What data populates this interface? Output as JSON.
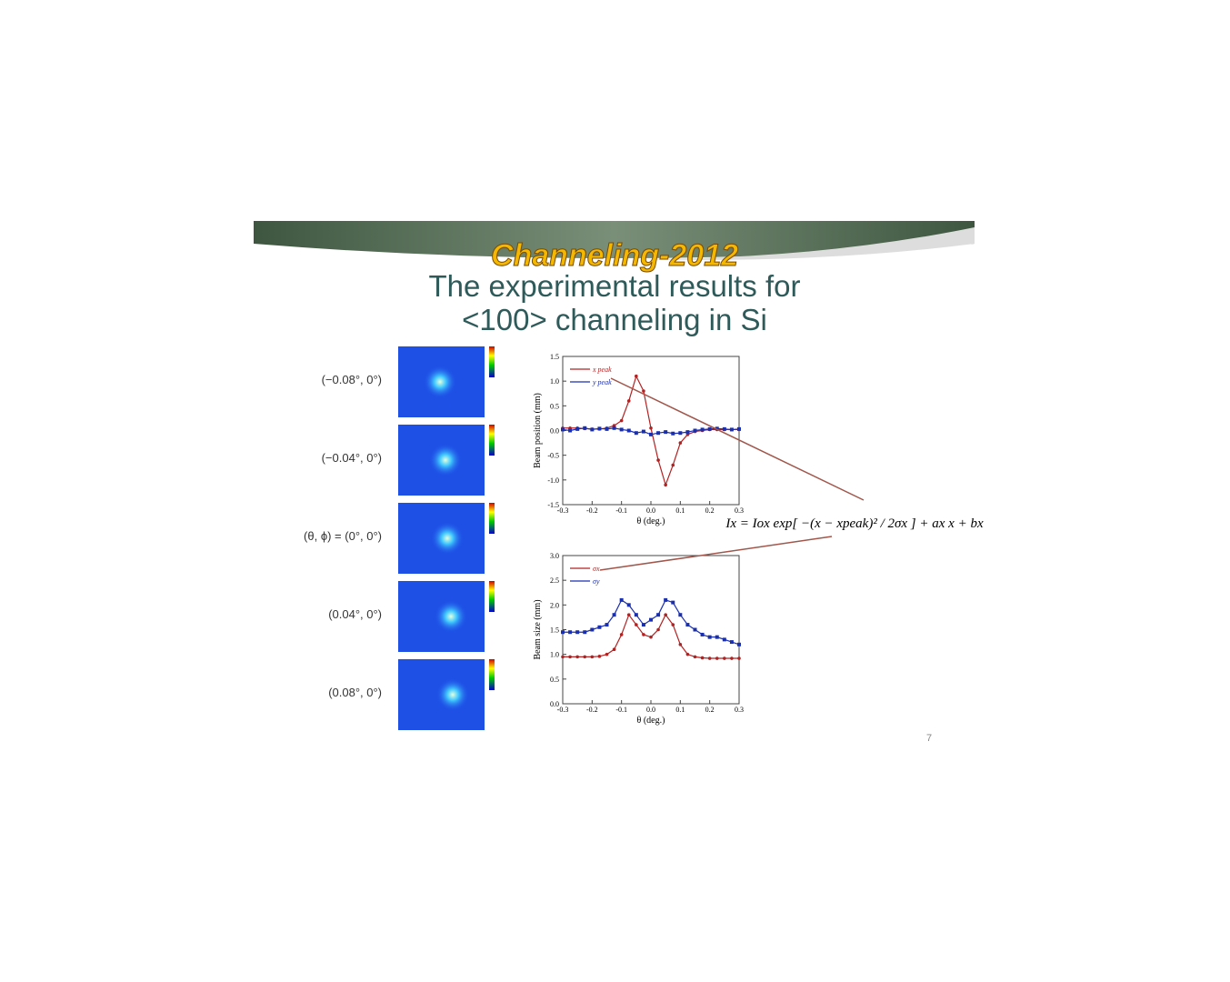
{
  "banner": "Channeling-2012",
  "title": [
    "The experimental results for",
    "<100> channeling in Si"
  ],
  "panels": [
    "(−0.08°, 0°)",
    "(−0.04°, 0°)",
    "(θ, ϕ) = (0°, 0°)",
    "(0.04°, 0°)",
    "(0.08°, 0°)"
  ],
  "formula": "Ix = Iox exp[ −(x − xpeak)² / 2σx ] + ax x + bx",
  "page_number": "7",
  "chart_data": [
    {
      "type": "line",
      "x_label": "θ (deg.)",
      "y_label": "Beam position (mm)",
      "x": [
        -0.3,
        -0.275,
        -0.25,
        -0.225,
        -0.2,
        -0.175,
        -0.15,
        -0.125,
        -0.1,
        -0.075,
        -0.05,
        -0.025,
        0,
        0.025,
        0.05,
        0.075,
        0.1,
        0.125,
        0.15,
        0.175,
        0.2,
        0.225,
        0.25,
        0.275,
        0.3
      ],
      "series": [
        {
          "name": "x peak",
          "color": "#b22222",
          "values": [
            0.05,
            0.05,
            0.05,
            0.04,
            0.03,
            0.03,
            0.05,
            0.1,
            0.2,
            0.6,
            1.1,
            0.8,
            0.05,
            -0.6,
            -1.1,
            -0.7,
            -0.25,
            -0.08,
            -0.02,
            0,
            0.02,
            0.02,
            0.02,
            0.02,
            0.02
          ]
        },
        {
          "name": "y peak",
          "color": "#1a2fb0",
          "values": [
            0.02,
            0,
            0.03,
            0.05,
            0.02,
            0.04,
            0.03,
            0.05,
            0.02,
            0,
            -0.05,
            -0.02,
            -0.08,
            -0.05,
            -0.03,
            -0.06,
            -0.05,
            -0.03,
            0,
            0.02,
            0.03,
            0.04,
            0.03,
            0.02,
            0.03
          ]
        }
      ],
      "xlim": [
        -0.3,
        0.3
      ],
      "xticks": [
        -0.3,
        -0.2,
        -0.1,
        {
          "value": 0,
          "label": "0.0"
        },
        0.1,
        0.2,
        0.3
      ],
      "ylim": [
        -1.5,
        1.5
      ],
      "yticks": [
        -1.5,
        {
          "value": -1,
          "label": "-1.0"
        },
        -0.5,
        {
          "value": 0,
          "label": "0.0"
        },
        0.5,
        {
          "value": 1,
          "label": "1.0"
        },
        1.5
      ]
    },
    {
      "type": "line",
      "x_label": "θ (deg.)",
      "y_label": "Beam size (mm)",
      "x": [
        -0.3,
        -0.275,
        -0.25,
        -0.225,
        -0.2,
        -0.175,
        -0.15,
        -0.125,
        -0.1,
        -0.075,
        -0.05,
        -0.025,
        0,
        0.025,
        0.05,
        0.075,
        0.1,
        0.125,
        0.15,
        0.175,
        0.2,
        0.225,
        0.25,
        0.275,
        0.3
      ],
      "series": [
        {
          "name": "σx",
          "color": "#b22222",
          "values": [
            0.95,
            0.95,
            0.95,
            0.95,
            0.95,
            0.96,
            1.0,
            1.1,
            1.4,
            1.8,
            1.6,
            1.4,
            1.35,
            1.5,
            1.8,
            1.6,
            1.2,
            1.0,
            0.95,
            0.93,
            0.92,
            0.92,
            0.92,
            0.92,
            0.92
          ]
        },
        {
          "name": "σy",
          "color": "#1a2fb0",
          "values": [
            1.45,
            1.45,
            1.45,
            1.45,
            1.5,
            1.55,
            1.6,
            1.8,
            2.1,
            2.0,
            1.8,
            1.6,
            1.7,
            1.8,
            2.1,
            2.05,
            1.8,
            1.6,
            1.5,
            1.4,
            1.35,
            1.35,
            1.3,
            1.25,
            1.2
          ]
        }
      ],
      "xlim": [
        -0.3,
        0.3
      ],
      "xticks": [
        -0.3,
        -0.2,
        -0.1,
        {
          "value": 0,
          "label": "0.0"
        },
        0.1,
        0.2,
        0.3
      ],
      "ylim": [
        0,
        3
      ],
      "yticks": [
        {
          "value": 0,
          "label": "0.0"
        },
        0.5,
        {
          "value": 1,
          "label": "1.0"
        },
        1.5,
        {
          "value": 2,
          "label": "2.0"
        },
        2.5,
        {
          "value": 3,
          "label": "3.0"
        }
      ]
    }
  ]
}
